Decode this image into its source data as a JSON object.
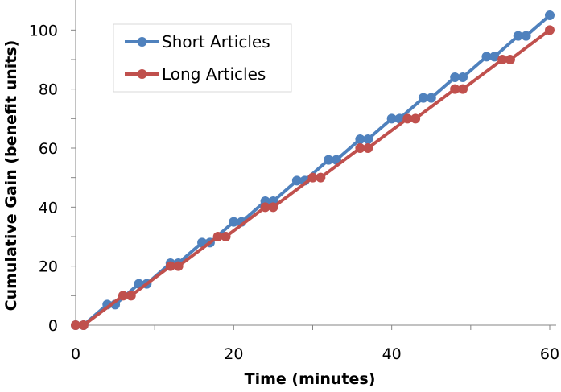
{
  "chart_data": {
    "type": "line",
    "xlabel": "Time (minutes)",
    "ylabel": "Cumulative Gain (benefit units)",
    "xlim": [
      0,
      60
    ],
    "ylim": [
      0,
      105
    ],
    "xticks": [
      "0",
      "20",
      "40",
      "60"
    ],
    "yticks": [
      "0",
      "20",
      "40",
      "60",
      "80",
      "100"
    ],
    "grid": false,
    "legend": "top-left",
    "series": [
      {
        "name": "Short Articles",
        "color": "#4F81BD",
        "x": [
          0,
          1,
          4,
          5,
          8,
          9,
          12,
          13,
          16,
          17,
          20,
          21,
          24,
          25,
          28,
          29,
          32,
          33,
          36,
          37,
          40,
          41,
          44,
          45,
          48,
          49,
          52,
          53,
          56,
          57,
          60
        ],
        "y": [
          0,
          0,
          7,
          7,
          14,
          14,
          21,
          21,
          28,
          28,
          35,
          35,
          42,
          42,
          49,
          49,
          56,
          56,
          63,
          63,
          70,
          70,
          77,
          77,
          84,
          84,
          91,
          91,
          98,
          98,
          105
        ]
      },
      {
        "name": "Long Articles",
        "color": "#C0504D",
        "x": [
          0,
          1,
          6,
          7,
          12,
          13,
          18,
          19,
          24,
          25,
          30,
          31,
          36,
          37,
          42,
          43,
          48,
          49,
          54,
          55,
          60
        ],
        "y": [
          0,
          0,
          10,
          10,
          20,
          20,
          30,
          30,
          40,
          40,
          50,
          50,
          60,
          60,
          70,
          70,
          80,
          80,
          90,
          90,
          100
        ]
      }
    ]
  }
}
